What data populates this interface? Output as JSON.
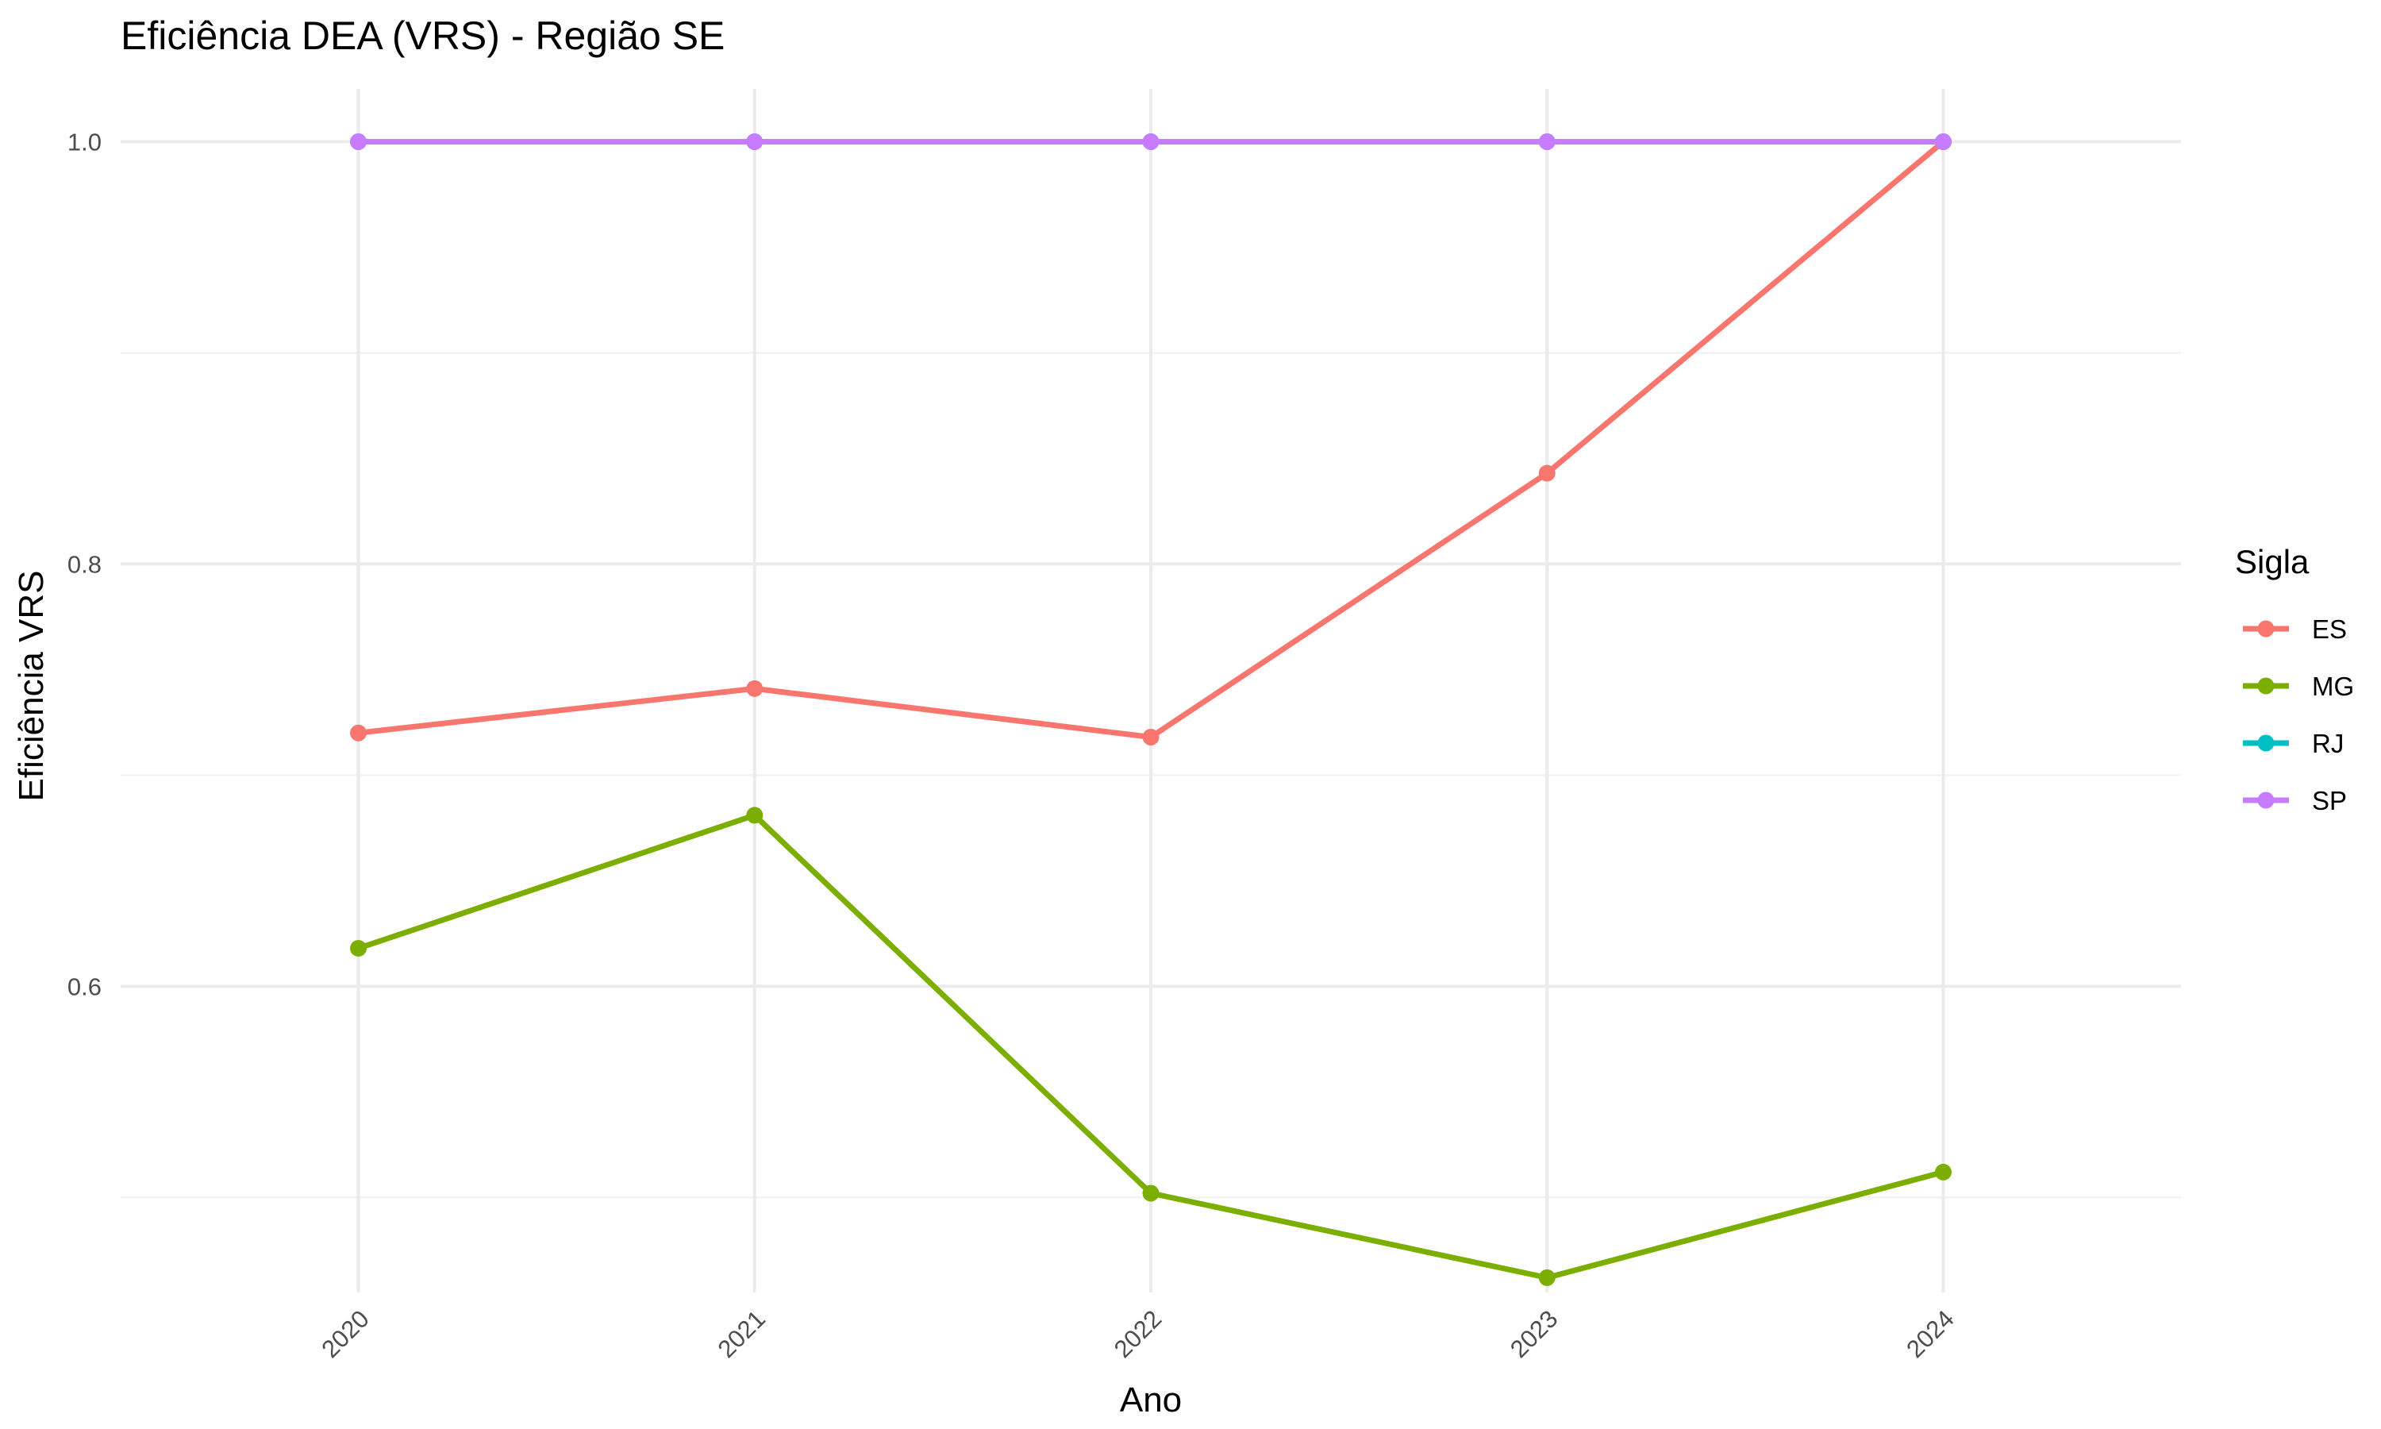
{
  "chart_data": {
    "type": "line",
    "title": "Eficiência DEA (VRS) - Região SE",
    "xlabel": "Ano",
    "ylabel": "Eficiência VRS",
    "x": [
      "2020",
      "2021",
      "2022",
      "2023",
      "2024"
    ],
    "y_ticks": [
      "0.6",
      "0.8",
      "1.0"
    ],
    "ylim": [
      0.455,
      1.025
    ],
    "grid": true,
    "legend": {
      "title": "Sigla",
      "position": "right"
    },
    "series": [
      {
        "name": "ES",
        "color": "#F8766D",
        "values": [
          0.72,
          0.741,
          0.718,
          0.843,
          1.0
        ]
      },
      {
        "name": "MG",
        "color": "#7CAE00",
        "values": [
          0.618,
          0.681,
          0.502,
          0.462,
          0.512
        ]
      },
      {
        "name": "RJ",
        "color": "#00BFC4",
        "values": [
          1.0,
          1.0,
          1.0,
          1.0,
          1.0
        ]
      },
      {
        "name": "SP",
        "color": "#C77CFF",
        "values": [
          1.0,
          1.0,
          1.0,
          1.0,
          1.0
        ]
      }
    ]
  }
}
